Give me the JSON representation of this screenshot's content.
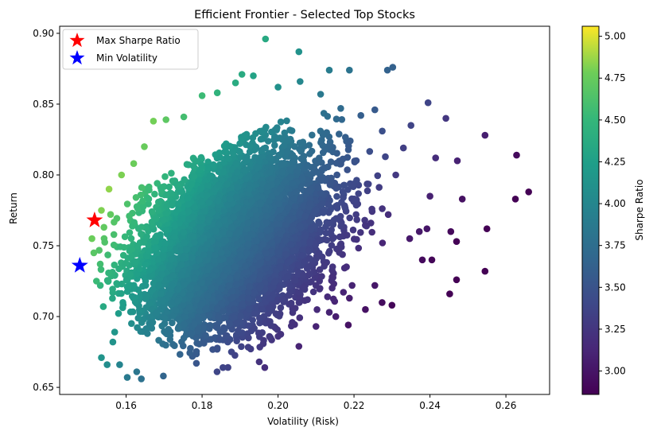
{
  "chart_data": {
    "type": "scatter",
    "title": "Efficient Frontier - Selected Top Stocks",
    "xlabel": "Volatility (Risk)",
    "ylabel": "Return",
    "xlim": [
      0.1425,
      0.2715
    ],
    "ylim": [
      0.645,
      0.905
    ],
    "x_ticks": [
      0.16,
      0.18,
      0.2,
      0.22,
      0.24,
      0.26
    ],
    "x_tick_labels": [
      "0.16",
      "0.18",
      "0.20",
      "0.22",
      "0.24",
      "0.26"
    ],
    "y_ticks": [
      0.65,
      0.7,
      0.75,
      0.8,
      0.85,
      0.9
    ],
    "y_tick_labels": [
      "0.65",
      "0.70",
      "0.75",
      "0.80",
      "0.85",
      "0.90"
    ],
    "grid": false,
    "legend_position": "top-left",
    "legend": [
      {
        "label": "Max Sharpe Ratio",
        "color": "#ff0000",
        "marker": "star"
      },
      {
        "label": "Min Volatility",
        "color": "#0000ff",
        "marker": "star"
      }
    ],
    "colorbar": {
      "label": "Sharpe Ratio",
      "colormap": "viridis",
      "range": [
        2.86,
        5.06
      ],
      "ticks": [
        3.0,
        3.25,
        3.5,
        3.75,
        4.0,
        4.25,
        4.5,
        4.75,
        5.0
      ],
      "tick_labels": [
        "3.00",
        "3.25",
        "3.50",
        "3.75",
        "4.00",
        "4.25",
        "4.50",
        "4.75",
        "5.00"
      ]
    },
    "max_sharpe": {
      "x": 0.1517,
      "y": 0.768
    },
    "min_volatility": {
      "x": 0.1478,
      "y": 0.736
    },
    "points": [
      [
        0.1967,
        0.896
      ],
      [
        0.2055,
        0.887
      ],
      [
        0.2188,
        0.874
      ],
      [
        0.2288,
        0.874
      ],
      [
        0.2302,
        0.876
      ],
      [
        0.2135,
        0.874
      ],
      [
        0.2395,
        0.851
      ],
      [
        0.2442,
        0.84
      ],
      [
        0.2545,
        0.828
      ],
      [
        0.2628,
        0.814
      ],
      [
        0.266,
        0.788
      ],
      [
        0.2625,
        0.783
      ],
      [
        0.255,
        0.762
      ],
      [
        0.2545,
        0.732
      ],
      [
        0.2485,
        0.783
      ],
      [
        0.2472,
        0.81
      ],
      [
        0.2415,
        0.812
      ],
      [
        0.24,
        0.785
      ],
      [
        0.2392,
        0.762
      ],
      [
        0.247,
        0.753
      ],
      [
        0.2455,
        0.76
      ],
      [
        0.247,
        0.726
      ],
      [
        0.2452,
        0.716
      ],
      [
        0.238,
        0.74
      ],
      [
        0.2405,
        0.74
      ],
      [
        0.2372,
        0.76
      ],
      [
        0.235,
        0.835
      ],
      [
        0.233,
        0.819
      ],
      [
        0.231,
        0.8
      ],
      [
        0.229,
        0.772
      ],
      [
        0.2275,
        0.752
      ],
      [
        0.23,
        0.708
      ],
      [
        0.2255,
        0.722
      ],
      [
        0.223,
        0.705
      ],
      [
        0.2195,
        0.722
      ],
      [
        0.2188,
        0.713
      ],
      [
        0.2185,
        0.694
      ],
      [
        0.2152,
        0.7
      ],
      [
        0.2135,
        0.703
      ],
      [
        0.21,
        0.693
      ],
      [
        0.2055,
        0.679
      ],
      [
        0.2,
        0.686
      ],
      [
        0.1965,
        0.664
      ],
      [
        0.193,
        0.69
      ],
      [
        0.1855,
        0.664
      ],
      [
        0.1785,
        0.667
      ],
      [
        0.1698,
        0.658
      ],
      [
        0.164,
        0.656
      ],
      [
        0.1603,
        0.657
      ],
      [
        0.1628,
        0.661
      ],
      [
        0.1583,
        0.666
      ],
      [
        0.155,
        0.666
      ],
      [
        0.1535,
        0.671
      ],
      [
        0.1565,
        0.682
      ],
      [
        0.157,
        0.689
      ],
      [
        0.154,
        0.707
      ],
      [
        0.1532,
        0.722
      ],
      [
        0.1522,
        0.725
      ],
      [
        0.151,
        0.755
      ],
      [
        0.1515,
        0.745
      ],
      [
        0.1535,
        0.775
      ],
      [
        0.1555,
        0.79
      ],
      [
        0.1588,
        0.8
      ],
      [
        0.162,
        0.808
      ],
      [
        0.1648,
        0.82
      ],
      [
        0.1672,
        0.838
      ],
      [
        0.1705,
        0.839
      ],
      [
        0.1752,
        0.841
      ],
      [
        0.18,
        0.856
      ],
      [
        0.184,
        0.858
      ],
      [
        0.1888,
        0.865
      ],
      [
        0.1905,
        0.871
      ],
      [
        0.1935,
        0.87
      ],
      [
        0.2,
        0.862
      ],
      [
        0.2058,
        0.866
      ],
      [
        0.2112,
        0.857
      ],
      [
        0.2165,
        0.847
      ],
      [
        0.2218,
        0.842
      ],
      [
        0.2255,
        0.846
      ],
      [
        0.219,
        0.824
      ]
    ]
  }
}
